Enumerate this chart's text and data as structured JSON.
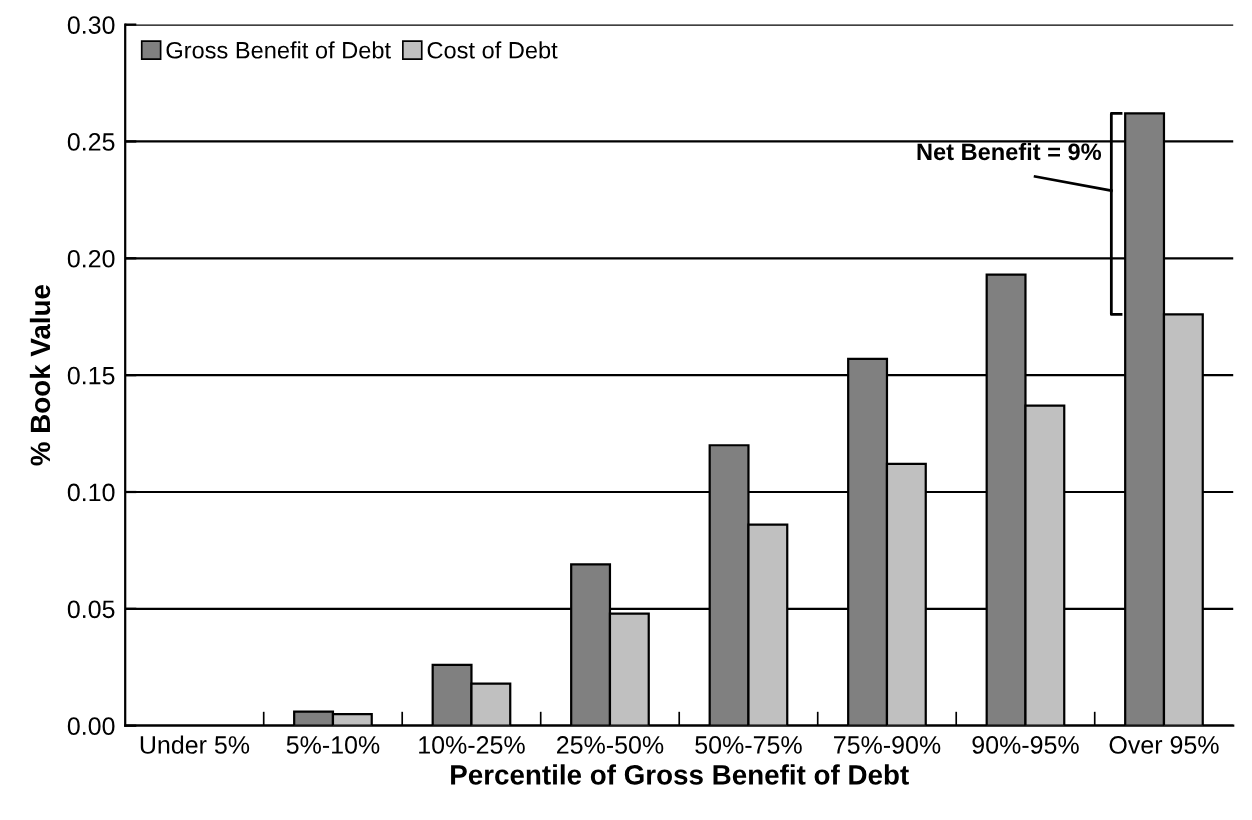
{
  "chart_data": {
    "type": "bar",
    "xlabel": "Percentile of Gross Benefit of Debt",
    "ylabel": "% Book Value",
    "categories": [
      "Under 5%",
      "5%-10%",
      "10%-25%",
      "25%-50%",
      "50%-75%",
      "75%-90%",
      "90%-95%",
      "Over 95%"
    ],
    "series": [
      {
        "name": "Gross Benefit of Debt",
        "color": "#808080",
        "values": [
          null,
          0.006,
          0.026,
          0.069,
          0.12,
          0.157,
          0.193,
          0.262
        ]
      },
      {
        "name": "Cost of Debt",
        "color": "#c0c0c0",
        "values": [
          null,
          0.005,
          0.018,
          0.048,
          0.086,
          0.112,
          0.137,
          0.176
        ]
      }
    ],
    "ylim": [
      0,
      0.3
    ],
    "yticks": [
      {
        "value": 0,
        "label": "0.00"
      },
      {
        "value": 0.05,
        "label": "0.05"
      },
      {
        "value": 0.1,
        "label": "0.10"
      },
      {
        "value": 0.15,
        "label": "0.15"
      },
      {
        "value": 0.2,
        "label": "0.20"
      },
      {
        "value": 0.25,
        "label": "0.25"
      },
      {
        "value": 0.3,
        "label": "0.30"
      }
    ],
    "grid": "y",
    "legend": "top left",
    "annotations": [
      "Net Benefit = 9%"
    ]
  }
}
